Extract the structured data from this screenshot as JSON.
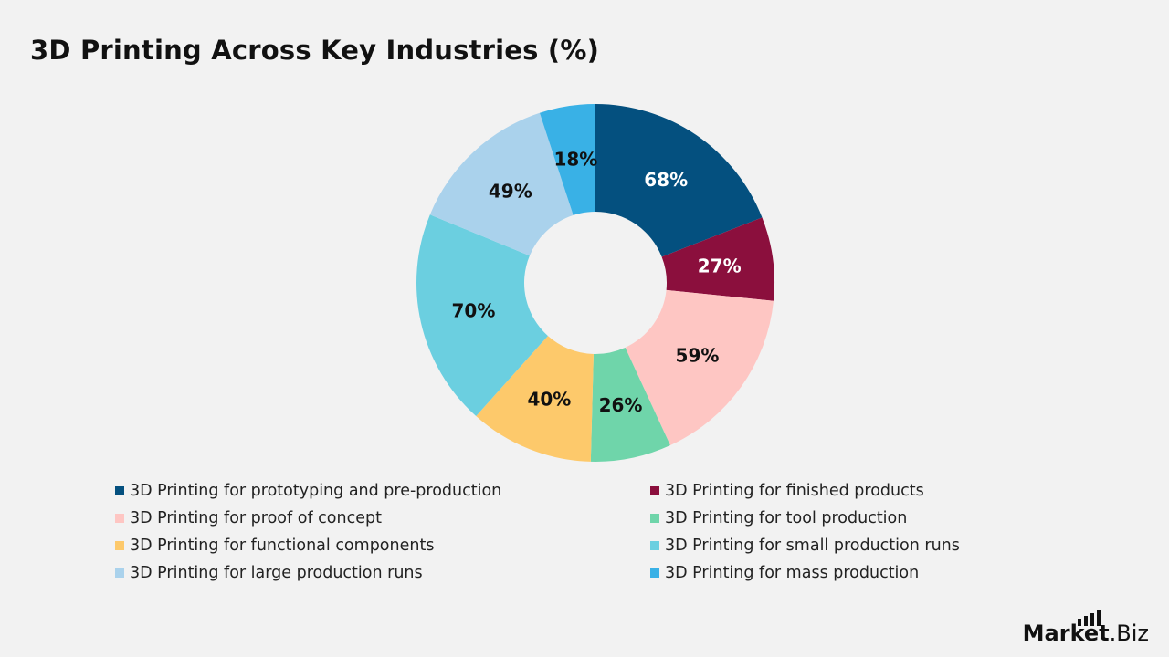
{
  "title": "3D Printing Across Key Industries (%)",
  "chart_data": {
    "type": "pie",
    "variant": "donut",
    "title": "3D Printing Across Key Industries (%)",
    "start_angle": "12 o'clock, clockwise",
    "legend_placement": "bottom",
    "categories": [
      "3D Printing for prototyping and pre-production",
      "3D Printing for finished products",
      "3D Printing for proof of concept",
      "3D Printing for tool production",
      "3D Printing for functional components",
      "3D Printing for small production runs",
      "3D Printing for large production runs",
      "3D Printing for mass production"
    ],
    "values": [
      68,
      27,
      59,
      26,
      40,
      70,
      49,
      18
    ],
    "data_labels": [
      "68%",
      "27%",
      "59%",
      "26%",
      "40%",
      "70%",
      "49%",
      "18%"
    ],
    "colors": [
      "#04507f",
      "#8b0f3d",
      "#fec6c3",
      "#6fd5aa",
      "#fdc96b",
      "#6bcfe0",
      "#aad2ec",
      "#39b1e6"
    ],
    "label_colors": [
      "#ffffff",
      "#ffffff",
      "#111111",
      "#111111",
      "#111111",
      "#111111",
      "#111111",
      "#111111"
    ]
  },
  "logo": {
    "text_bold": "Market",
    "text_regular": ".Biz"
  }
}
